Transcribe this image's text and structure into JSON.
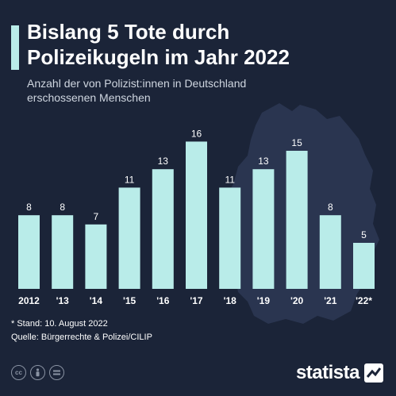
{
  "header": {
    "title_line1": "Bislang 5 Tote durch",
    "title_line2": "Polizeikugeln im Jahr 2022",
    "subtitle_line1": "Anzahl der von Polizist:innen in Deutschland",
    "subtitle_line2": "erschossenen Menschen"
  },
  "colors": {
    "background": "#1b2438",
    "bar": "#b9ece9",
    "map": "#2a3550",
    "text": "#ffffff"
  },
  "chart_data": {
    "type": "bar",
    "categories": [
      "2012",
      "'13",
      "'14",
      "'15",
      "'16",
      "'17",
      "'18",
      "'19",
      "'20",
      "'21",
      "'22*"
    ],
    "values": [
      8,
      8,
      7,
      11,
      13,
      16,
      11,
      13,
      15,
      8,
      5
    ],
    "title": "Bislang 5 Tote durch Polizeikugeln im Jahr 2022",
    "subtitle": "Anzahl der von Polizist:innen in Deutschland erschossenen Menschen",
    "xlabel": "",
    "ylabel": "",
    "ylim": [
      0,
      16
    ],
    "grid": false,
    "legend": "none"
  },
  "footer": {
    "note": "* Stand: 10. August 2022",
    "source": "Quelle: Bürgerrechte & Polizei/CILIP",
    "brand": "statista",
    "license_icons": [
      "creative-commons-icon",
      "attribution-icon",
      "no-derivatives-icon"
    ]
  }
}
